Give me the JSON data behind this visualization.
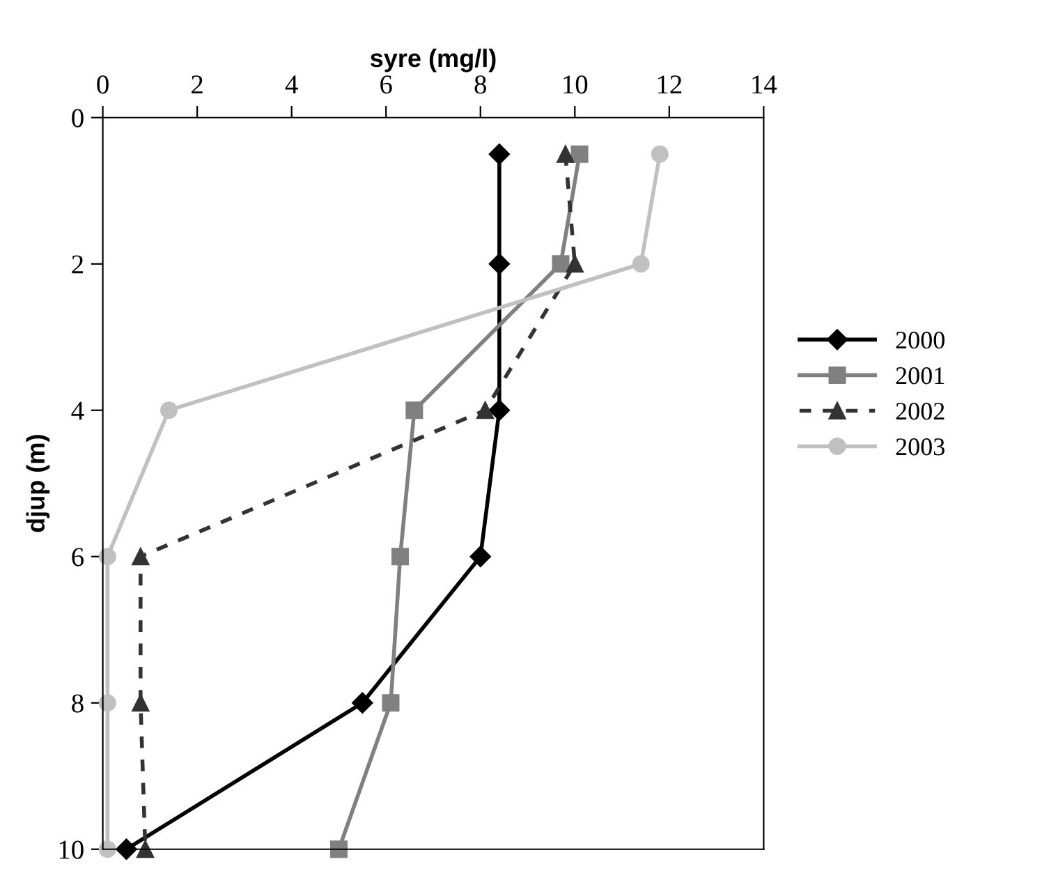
{
  "chart_data": {
    "type": "line",
    "xlabel": "syre (mg/l)",
    "ylabel": "djup (m)",
    "xlim": [
      0,
      14
    ],
    "xticks": [
      0,
      2,
      4,
      6,
      8,
      10,
      12,
      14
    ],
    "ylim": [
      10,
      0
    ],
    "yticks": [
      0,
      2,
      4,
      6,
      8,
      10
    ],
    "grid": false,
    "legend": "right",
    "series": [
      {
        "name": "2000",
        "color": "#000000",
        "marker": "diamond",
        "line_style": "solid",
        "x": [
          8.4,
          8.4,
          8.4,
          8.0,
          5.5,
          0.5
        ],
        "values": [
          0.5,
          2,
          4,
          6,
          8,
          10
        ]
      },
      {
        "name": "2001",
        "color": "#808080",
        "marker": "square",
        "line_style": "solid",
        "x": [
          10.1,
          9.7,
          6.6,
          6.3,
          6.1,
          5.0
        ],
        "values": [
          0.5,
          2,
          4,
          6,
          8,
          10
        ]
      },
      {
        "name": "2002",
        "color": "#333333",
        "marker": "triangle",
        "line_style": "dashed",
        "x": [
          9.8,
          10.0,
          8.1,
          0.8,
          0.8,
          0.9
        ],
        "values": [
          0.5,
          2,
          4,
          6,
          8,
          10
        ]
      },
      {
        "name": "2003",
        "color": "#c0c0c0",
        "marker": "circle",
        "line_style": "solid",
        "x": [
          11.8,
          11.4,
          1.4,
          0.1,
          0.1,
          0.1
        ],
        "values": [
          0.5,
          2,
          4,
          6,
          8,
          10
        ]
      }
    ]
  }
}
